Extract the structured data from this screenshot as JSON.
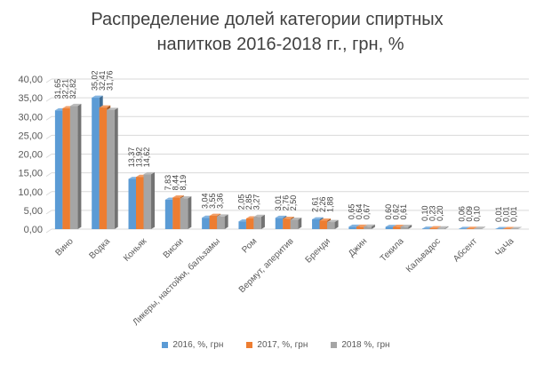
{
  "chart_data": {
    "type": "bar",
    "title_lines": [
      "Распределение долей категории спиртных",
      "напитков 2016-2018  гг., грн, %"
    ],
    "xlabel": "",
    "ylabel": "",
    "ylim": [
      0,
      40
    ],
    "yticks": [
      0,
      5,
      10,
      15,
      20,
      25,
      30,
      35,
      40
    ],
    "ytick_labels": [
      "0,00",
      "5,00",
      "10,00",
      "15,00",
      "20,00",
      "25,00",
      "30,00",
      "35,00",
      "40,00"
    ],
    "grid": true,
    "legend_position": "bottom",
    "categories": [
      "Вино",
      "Водка",
      "Коньяк",
      "Виски",
      "Ликеры, настойки, бальзамы",
      "Ром",
      "Вермут, аперитив",
      "Бренди",
      "Джин",
      "Текила",
      "Кальвадос",
      "Абсент",
      "ЧаЧа"
    ],
    "series": [
      {
        "name": "2016, %, грн",
        "color": "#5b9bd5",
        "values": [
          31.65,
          35.02,
          13.37,
          7.83,
          3.04,
          2.05,
          3.01,
          2.61,
          0.65,
          0.6,
          0.1,
          0.06,
          0.01
        ],
        "labels": [
          "31,65",
          "35,02",
          "13,37",
          "7,83",
          "3,04",
          "2,05",
          "3,01",
          "2,61",
          "0,65",
          "0,60",
          "0,10",
          "0,06",
          "0,01"
        ]
      },
      {
        "name": "2017, %, грн",
        "color": "#ed7d31",
        "values": [
          32.21,
          32.41,
          13.92,
          8.44,
          3.55,
          2.85,
          2.76,
          2.26,
          0.64,
          0.62,
          0.23,
          0.09,
          0.01
        ],
        "labels": [
          "32,21",
          "32,41",
          "13,92",
          "8,44",
          "3,55",
          "2,85",
          "2,76",
          "2,26",
          "0,64",
          "0,62",
          "0,23",
          "0,09",
          "0,01"
        ]
      },
      {
        "name": "2018 %, грн",
        "color": "#a5a5a5",
        "values": [
          32.82,
          31.76,
          14.62,
          8.19,
          3.36,
          3.27,
          2.5,
          1.88,
          0.67,
          0.61,
          0.2,
          0.1,
          0.01
        ],
        "labels": [
          "32,82",
          "31,76",
          "14,62",
          "8,19",
          "3,36",
          "3,27",
          "2,50",
          "1,88",
          "0,67",
          "0,61",
          "0,20",
          "0,10",
          "0,01"
        ]
      }
    ]
  }
}
